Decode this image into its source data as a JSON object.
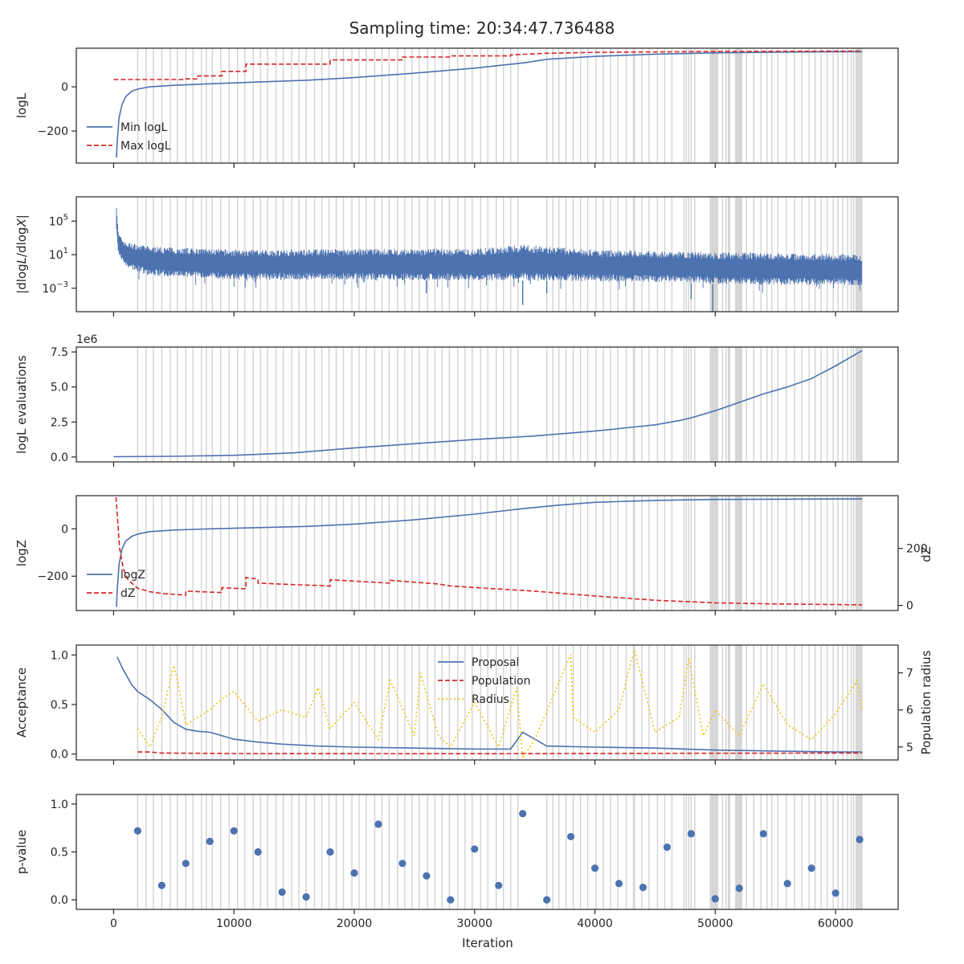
{
  "figure_title": "Sampling time: 20:34:47.736488",
  "x_label": "Iteration",
  "x_ticks": [
    "0",
    "10000",
    "20000",
    "30000",
    "40000",
    "50000",
    "60000"
  ],
  "x_tick_values": [
    0,
    10000,
    20000,
    30000,
    40000,
    50000,
    60000
  ],
  "xlim": [
    -3100,
    65200
  ],
  "colors": {
    "blue": "#4c72b0",
    "red": "#d62728",
    "yellow": "#f1c40f",
    "insertion_lines": "#d3d3d3",
    "axes": "#262626"
  },
  "chart_data": [
    {
      "type": "line",
      "ylabel": "logL",
      "y_ticks": [
        "0",
        "−200"
      ],
      "y_tick_values": [
        0,
        -200
      ],
      "ylim": [
        -345,
        175
      ],
      "legend": {
        "placement": "lower-left",
        "entries": [
          "Min logL",
          "Max logL"
        ]
      },
      "series": [
        {
          "name": "Min logL",
          "style": "solid",
          "color": "blue",
          "x": [
            240,
            300,
            450,
            700,
            1000,
            1500,
            2000,
            3000,
            5000,
            8000,
            12000,
            16000,
            20000,
            25000,
            30000,
            34000,
            36000,
            40000,
            45000,
            50000,
            55000,
            60000,
            62200
          ],
          "y": [
            -320,
            -250,
            -140,
            -80,
            -45,
            -20,
            -10,
            0,
            7,
            14,
            22,
            30,
            42,
            62,
            85,
            108,
            125,
            138,
            148,
            154,
            157,
            159,
            159
          ]
        },
        {
          "name": "Max logL",
          "style": "dashed",
          "color": "red",
          "x": [
            0,
            6000,
            6000,
            7000,
            7000,
            9000,
            9000,
            11000,
            11000,
            18000,
            18000,
            24000,
            24000,
            28000,
            28000,
            33000,
            33000,
            36000,
            40000,
            50000,
            62200
          ],
          "y": [
            33,
            33,
            36,
            36,
            50,
            50,
            70,
            70,
            103,
            103,
            122,
            122,
            135,
            135,
            140,
            140,
            145,
            152,
            156,
            160,
            162
          ]
        }
      ]
    },
    {
      "type": "line",
      "ylabel": "|dlogL/dlogX|",
      "y_scale": "log",
      "y_ticks": [
        "10^5",
        "10^1",
        "10^-3"
      ],
      "y_tick_values": [
        100000,
        10,
        0.001
      ],
      "ylim_log10": [
        -5.8,
        7.9
      ],
      "series": [
        {
          "name": "",
          "style": "noisy-band",
          "color": "blue",
          "x": [
            240,
            400,
            1000,
            3000,
            10000,
            20000,
            30000,
            34000,
            40000,
            47000,
            50000,
            55000,
            60000,
            62200
          ],
          "upper_log10": [
            7.3,
            3.5,
            2.5,
            2.0,
            1.6,
            1.7,
            1.7,
            2.2,
            1.6,
            1.4,
            1.3,
            1.2,
            1.1,
            1.0
          ],
          "lower_log10": [
            4.0,
            1.0,
            -0.5,
            -1.5,
            -2.0,
            -2.0,
            -2.1,
            -2.1,
            -2.2,
            -2.3,
            -2.5,
            -2.6,
            -2.6,
            -2.7
          ],
          "spikes_log10": [
            [
              34000,
              -5.0
            ],
            [
              36000,
              -3.6
            ],
            [
              48000,
              -4.3
            ],
            [
              49800,
              -5.8
            ],
            [
              26000,
              -3.6
            ]
          ]
        }
      ]
    },
    {
      "type": "line",
      "ylabel": "logL evaluations",
      "offset_text": "1e6",
      "y_ticks": [
        "0.0",
        "2.5",
        "5.0",
        "7.5"
      ],
      "y_tick_values": [
        0,
        2.5,
        5.0,
        7.5
      ],
      "ylim": [
        -0.35,
        7.85
      ],
      "series": [
        {
          "name": "",
          "style": "solid",
          "color": "blue",
          "x": [
            0,
            5000,
            10000,
            15000,
            20000,
            25000,
            30000,
            35000,
            40000,
            45000,
            47000,
            48000,
            50000,
            52000,
            54000,
            56000,
            58000,
            60000,
            62200
          ],
          "y": [
            0.02,
            0.05,
            0.12,
            0.3,
            0.65,
            0.95,
            1.25,
            1.5,
            1.85,
            2.3,
            2.6,
            2.8,
            3.3,
            3.9,
            4.5,
            5.0,
            5.6,
            6.5,
            7.6
          ]
        }
      ]
    },
    {
      "type": "line",
      "ylabel": "logZ",
      "ylabel_right": "dZ",
      "y_ticks": [
        "0",
        "−200"
      ],
      "y_tick_values": [
        0,
        -200
      ],
      "ylim": [
        -345,
        140
      ],
      "y2_ticks": [
        "0",
        "200"
      ],
      "y2_tick_values": [
        0,
        200
      ],
      "ylim2": [
        -18,
        385
      ],
      "legend": {
        "placement": "lower-left",
        "entries": [
          "logZ",
          "dZ"
        ]
      },
      "series": [
        {
          "name": "logZ",
          "style": "solid",
          "color": "blue",
          "axis": "left",
          "x": [
            240,
            300,
            450,
            700,
            1000,
            1500,
            2000,
            3000,
            5000,
            8000,
            12000,
            16000,
            20000,
            25000,
            30000,
            34000,
            37000,
            40000,
            45000,
            50000,
            55000,
            60000,
            62200
          ],
          "y": [
            -330,
            -260,
            -150,
            -85,
            -52,
            -32,
            -22,
            -12,
            -5,
            0,
            5,
            10,
            20,
            38,
            62,
            85,
            100,
            112,
            120,
            124,
            125,
            126,
            126
          ]
        },
        {
          "name": "dZ",
          "style": "dashed",
          "color": "red",
          "axis": "right",
          "x": [
            200,
            500,
            800,
            1200,
            2000,
            3000,
            4000,
            6000,
            6000,
            9000,
            9000,
            11000,
            11000,
            12000,
            12000,
            18000,
            18000,
            23000,
            23000,
            27000,
            28000,
            35000,
            40000,
            45000,
            50000,
            55000,
            60000,
            62200
          ],
          "y": [
            380,
            200,
            130,
            90,
            60,
            48,
            42,
            36,
            50,
            45,
            62,
            58,
            98,
            92,
            78,
            68,
            90,
            78,
            88,
            75,
            68,
            50,
            33,
            18,
            9,
            5,
            3,
            2
          ]
        }
      ]
    },
    {
      "type": "line",
      "ylabel": "Acceptance",
      "ylabel_right": "Population radius",
      "y_ticks": [
        "0.0",
        "0.5",
        "1.0"
      ],
      "y_tick_values": [
        0,
        0.5,
        1.0
      ],
      "ylim": [
        -0.06,
        1.1
      ],
      "y2_ticks": [
        "5",
        "6",
        "7"
      ],
      "y2_tick_values": [
        5,
        6,
        7
      ],
      "ylim2": [
        4.65,
        7.75
      ],
      "legend": {
        "placement": "top-center",
        "entries": [
          "Proposal",
          "Population",
          "Radius"
        ]
      },
      "series": [
        {
          "name": "Proposal",
          "style": "solid",
          "color": "blue",
          "axis": "left",
          "x": [
            300,
            800,
            1500,
            2000,
            3000,
            4000,
            5000,
            6000,
            7000,
            8000,
            10000,
            12000,
            14000,
            17000,
            20000,
            25000,
            30000,
            33000,
            34000,
            35000,
            36000,
            40000,
            45000,
            50000,
            55000,
            60000,
            62200
          ],
          "y": [
            0.98,
            0.85,
            0.7,
            0.63,
            0.55,
            0.45,
            0.32,
            0.25,
            0.23,
            0.22,
            0.15,
            0.12,
            0.1,
            0.08,
            0.07,
            0.06,
            0.05,
            0.05,
            0.22,
            0.15,
            0.08,
            0.07,
            0.06,
            0.04,
            0.03,
            0.02,
            0.02
          ]
        },
        {
          "name": "Population",
          "style": "dashed",
          "color": "red",
          "axis": "left",
          "x": [
            2000,
            3000,
            4000,
            10000,
            30000,
            60000,
            62200
          ],
          "y": [
            0.02,
            0.02,
            0.01,
            0.005,
            0.003,
            0.01,
            0.01
          ]
        },
        {
          "name": "Radius",
          "style": "dotted",
          "color": "yellow",
          "axis": "right",
          "x": [
            2000,
            3000,
            4000,
            5000,
            5300,
            6000,
            8000,
            9000,
            10000,
            12000,
            14000,
            16000,
            17000,
            18000,
            20000,
            22000,
            23000,
            25000,
            25500,
            27000,
            28000,
            30000,
            32000,
            33500,
            34000,
            35000,
            38000,
            38200,
            40000,
            42000,
            43000,
            43300,
            45000,
            47000,
            47800,
            49000,
            50000,
            52000,
            54000,
            56000,
            58000,
            60000,
            61800,
            62200
          ],
          "y": [
            5.5,
            5.0,
            5.8,
            7.2,
            6.8,
            5.6,
            6.0,
            6.3,
            6.5,
            5.7,
            6.0,
            5.8,
            6.6,
            5.5,
            6.2,
            5.2,
            6.8,
            5.3,
            7.0,
            5.3,
            5.0,
            6.2,
            5.0,
            6.6,
            4.7,
            5.2,
            7.5,
            5.8,
            5.4,
            6.0,
            7.3,
            7.6,
            5.4,
            5.8,
            7.4,
            5.3,
            6.0,
            5.3,
            6.7,
            5.6,
            5.2,
            5.9,
            6.8,
            6.0
          ]
        }
      ]
    },
    {
      "type": "scatter",
      "ylabel": "p-value",
      "y_ticks": [
        "0.0",
        "0.5",
        "1.0"
      ],
      "y_tick_values": [
        0,
        0.5,
        1.0
      ],
      "ylim": [
        -0.1,
        1.1
      ],
      "series": [
        {
          "name": "",
          "color": "blue",
          "x": [
            2000,
            4000,
            6000,
            8000,
            10000,
            12000,
            14000,
            16000,
            18000,
            20000,
            22000,
            24000,
            26000,
            28000,
            30000,
            32000,
            34000,
            36000,
            38000,
            40000,
            42000,
            44000,
            46000,
            48000,
            50000,
            52000,
            54000,
            56000,
            58000,
            60000,
            62000
          ],
          "y": [
            0.72,
            0.15,
            0.38,
            0.61,
            0.72,
            0.5,
            0.08,
            0.03,
            0.5,
            0.28,
            0.79,
            0.38,
            0.25,
            0.0,
            0.53,
            0.15,
            0.9,
            0.0,
            0.66,
            0.33,
            0.17,
            0.13,
            0.55,
            0.69,
            0.01,
            0.12,
            0.69,
            0.17,
            0.33,
            0.07,
            0.63
          ]
        }
      ]
    }
  ],
  "insertion_iterations": [
    2000,
    2700,
    3300,
    4000,
    4700,
    5300,
    6000,
    6600,
    7300,
    7700,
    8200,
    8900,
    9600,
    10300,
    10900,
    11600,
    12200,
    12800,
    13500,
    14100,
    14800,
    15400,
    16000,
    16700,
    17300,
    17900,
    18500,
    19100,
    19800,
    20400,
    21000,
    21700,
    22300,
    22900,
    23600,
    24200,
    24800,
    25400,
    26100,
    26700,
    27300,
    27900,
    28600,
    29200,
    29800,
    30500,
    31100,
    31800,
    32400,
    33000,
    33600,
    36000,
    36500,
    37000,
    37600,
    38200,
    38800,
    39400,
    40100,
    40700,
    41300,
    41900,
    42600,
    43200,
    43300,
    43900,
    44500,
    45200,
    45800,
    46400,
    47400,
    47600,
    47800,
    48000,
    48300,
    49600,
    49700,
    49800,
    49900,
    50000,
    50100,
    50200,
    50600,
    50900,
    51100,
    51200,
    51700,
    51800,
    51900,
    52000,
    52100,
    52200,
    52600,
    53200,
    53800,
    54300,
    54700,
    55200,
    55900,
    56600,
    57200,
    57800,
    58300,
    58800,
    59300,
    59800,
    60200,
    60600,
    61000,
    61300,
    61500,
    61700,
    61800,
    61900,
    62000,
    62100,
    62200
  ]
}
